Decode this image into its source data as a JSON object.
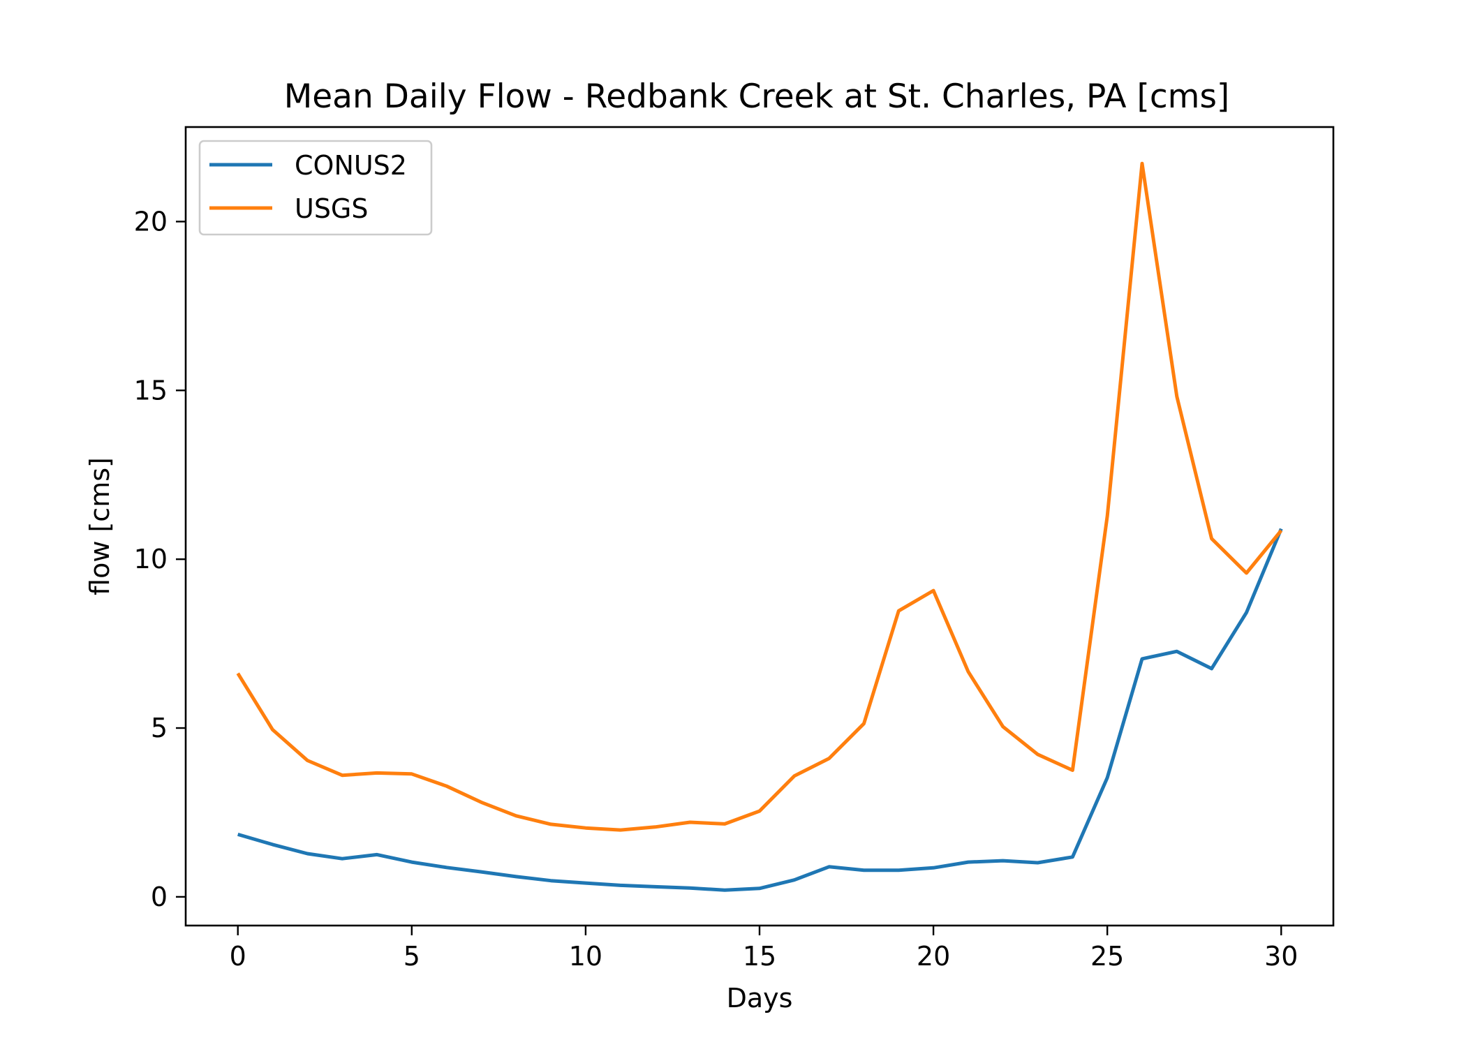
{
  "chart_data": {
    "type": "line",
    "title": "Mean Daily Flow - Redbank Creek at St. Charles, PA [cms]",
    "xlabel": "Days",
    "ylabel": "flow [cms]",
    "xlim": [
      -1.5,
      31.5
    ],
    "ylim": [
      -0.85,
      22.8
    ],
    "xticks": [
      0,
      5,
      10,
      15,
      20,
      25,
      30
    ],
    "yticks": [
      0,
      5,
      10,
      15,
      20
    ],
    "grid": false,
    "legend_position": "upper-left",
    "x": [
      0,
      1,
      2,
      3,
      4,
      5,
      6,
      7,
      8,
      9,
      10,
      11,
      12,
      13,
      14,
      15,
      16,
      17,
      18,
      19,
      20,
      21,
      22,
      23,
      24,
      25,
      26,
      27,
      28,
      29,
      30
    ],
    "series": [
      {
        "name": "CONUS2",
        "color": "#1f77b4",
        "values": [
          1.85,
          1.55,
          1.28,
          1.13,
          1.25,
          1.03,
          0.87,
          0.74,
          0.6,
          0.48,
          0.41,
          0.34,
          0.3,
          0.26,
          0.2,
          0.25,
          0.5,
          0.89,
          0.79,
          0.79,
          0.86,
          1.03,
          1.07,
          1.01,
          1.18,
          3.53,
          7.05,
          7.27,
          6.76,
          8.42,
          10.9
        ]
      },
      {
        "name": "USGS",
        "color": "#ff7f0e",
        "values": [
          6.62,
          4.95,
          4.04,
          3.6,
          3.67,
          3.64,
          3.28,
          2.8,
          2.4,
          2.15,
          2.04,
          1.98,
          2.07,
          2.21,
          2.16,
          2.54,
          3.58,
          4.1,
          5.13,
          8.47,
          9.07,
          6.67,
          5.04,
          4.22,
          3.75,
          11.28,
          21.72,
          14.82,
          10.61,
          9.59,
          10.85
        ]
      }
    ]
  }
}
